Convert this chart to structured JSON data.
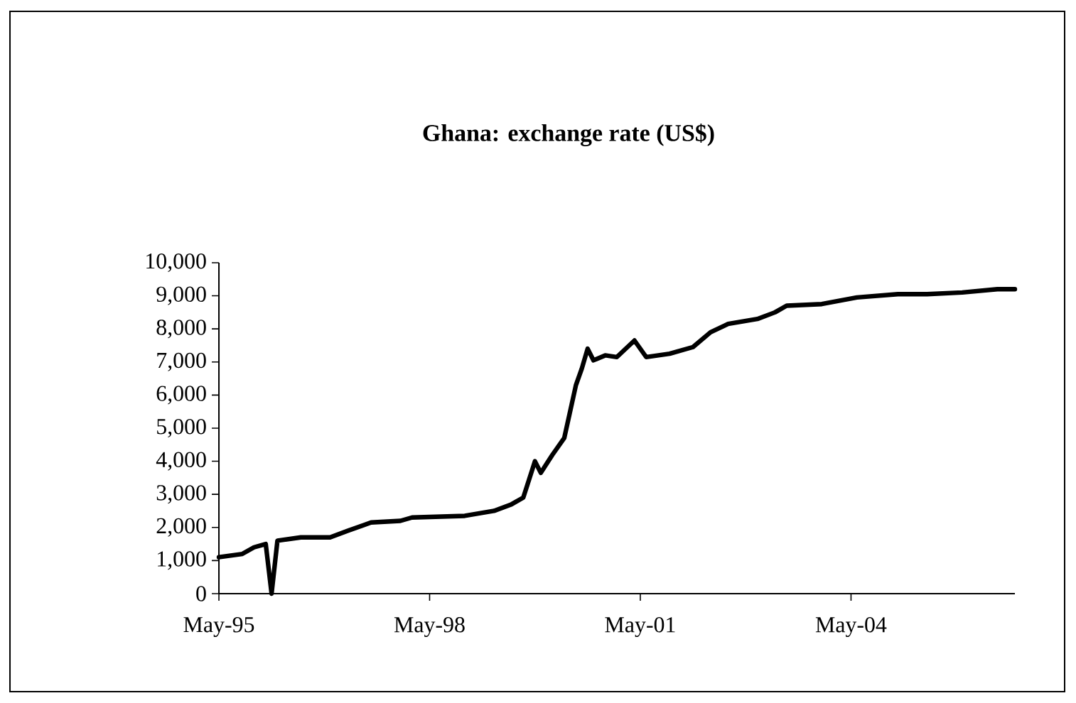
{
  "chart_data": {
    "type": "line",
    "title": "Ghana: exchange rate (US$)",
    "x": [
      "1995-05",
      "1995-09",
      "1995-11",
      "1996-01",
      "1996-02",
      "1996-03",
      "1996-07",
      "1996-12",
      "1997-03",
      "1997-07",
      "1997-12",
      "1998-02",
      "1998-11",
      "1999-04",
      "1999-07",
      "1999-09",
      "1999-10",
      "1999-11",
      "1999-12",
      "2000-02",
      "2000-04",
      "2000-06",
      "2000-07",
      "2000-08",
      "2000-09",
      "2000-11",
      "2001-01",
      "2001-04",
      "2001-06",
      "2001-10",
      "2002-02",
      "2002-05",
      "2002-08",
      "2003-01",
      "2003-04",
      "2003-06",
      "2003-12",
      "2004-06",
      "2005-01",
      "2005-06",
      "2005-12",
      "2006-06",
      "2006-09"
    ],
    "series": [
      {
        "color": "#000000",
        "values": [
          1100,
          1200,
          1400,
          1500,
          0,
          1600,
          1700,
          1700,
          1900,
          2150,
          2200,
          2300,
          2350,
          2500,
          2700,
          2900,
          3450,
          4000,
          3650,
          4200,
          4700,
          6300,
          6800,
          7400,
          7050,
          7200,
          7150,
          7650,
          7150,
          7250,
          7450,
          7900,
          8150,
          8300,
          8500,
          8700,
          8750,
          8950,
          9050,
          9050,
          9100,
          9200,
          9200
        ]
      }
    ],
    "xlim": [
      "1995-05",
      "2006-09"
    ],
    "xticks": [
      {
        "value": "1995-05",
        "label": "May-95"
      },
      {
        "value": "1998-05",
        "label": "May-98"
      },
      {
        "value": "2001-05",
        "label": "May-01"
      },
      {
        "value": "2004-05",
        "label": "May-04"
      }
    ],
    "ylim": [
      0,
      10000
    ],
    "yticks": [
      0,
      {
        "value": 1000,
        "label": "1,000"
      },
      {
        "value": 2000,
        "label": "2,000"
      },
      {
        "value": 3000,
        "label": "3,000"
      },
      {
        "value": 4000,
        "label": "4,000"
      },
      {
        "value": 5000,
        "label": "5,000"
      },
      {
        "value": 6000,
        "label": "6,000"
      },
      {
        "value": 7000,
        "label": "7,000"
      },
      {
        "value": 8000,
        "label": "8,000"
      },
      {
        "value": 9000,
        "label": "9,000"
      },
      {
        "value": 10000,
        "label": "10,000"
      }
    ],
    "grid": false,
    "marker": "none",
    "line_style": "solid"
  }
}
